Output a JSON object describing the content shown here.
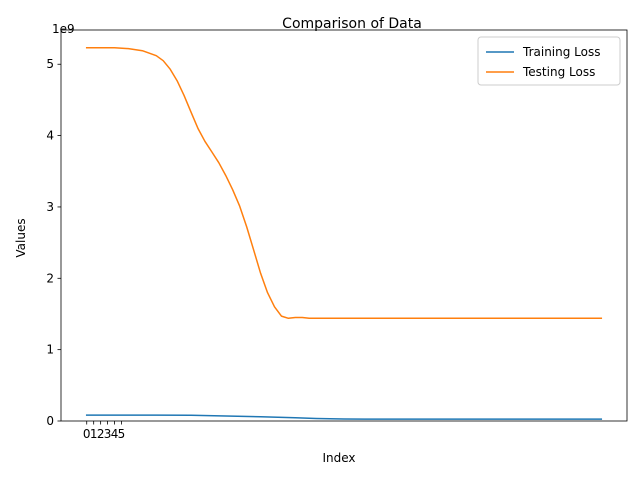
{
  "chart_data": {
    "type": "line",
    "title": "Comparison of Data",
    "xlabel": "Index",
    "ylabel": "Values",
    "y_offset_label": "1e9",
    "y_multiplier": 1000000000,
    "xlim": [
      -3.7,
      77.7
    ],
    "ylim": [
      0,
      5.48
    ],
    "x_ticks": [
      0,
      1,
      2,
      3,
      4,
      5
    ],
    "y_ticks": [
      0,
      1,
      2,
      3,
      4,
      5
    ],
    "legend_position": "top-right",
    "grid": false,
    "series": [
      {
        "name": "Training Loss",
        "color": "#1f77b4",
        "x": [
          0,
          5,
          10,
          15,
          20,
          25,
          30,
          33,
          37,
          40,
          45,
          50,
          55,
          60,
          65,
          70,
          74
        ],
        "values": [
          0.083,
          0.083,
          0.082,
          0.08,
          0.07,
          0.06,
          0.045,
          0.035,
          0.028,
          0.027,
          0.027,
          0.027,
          0.027,
          0.027,
          0.027,
          0.027,
          0.027
        ]
      },
      {
        "name": "Testing Loss",
        "color": "#ff7f0e",
        "x": [
          0,
          2,
          4,
          6,
          8,
          10,
          11,
          12,
          13,
          14,
          15,
          16,
          17,
          18,
          19,
          20,
          21,
          22,
          23,
          24,
          25,
          26,
          27,
          28,
          29,
          30,
          31,
          32,
          33,
          34,
          35,
          36,
          37,
          38,
          40,
          45,
          50,
          55,
          60,
          65,
          70,
          74
        ],
        "values": [
          5.23,
          5.23,
          5.23,
          5.22,
          5.19,
          5.12,
          5.05,
          4.93,
          4.77,
          4.56,
          4.33,
          4.1,
          3.92,
          3.77,
          3.62,
          3.44,
          3.24,
          3.01,
          2.72,
          2.4,
          2.07,
          1.8,
          1.6,
          1.47,
          1.44,
          1.45,
          1.45,
          1.44,
          1.44,
          1.44,
          1.44,
          1.44,
          1.44,
          1.44,
          1.44,
          1.44,
          1.44,
          1.44,
          1.44,
          1.44,
          1.44,
          1.44
        ]
      }
    ]
  }
}
